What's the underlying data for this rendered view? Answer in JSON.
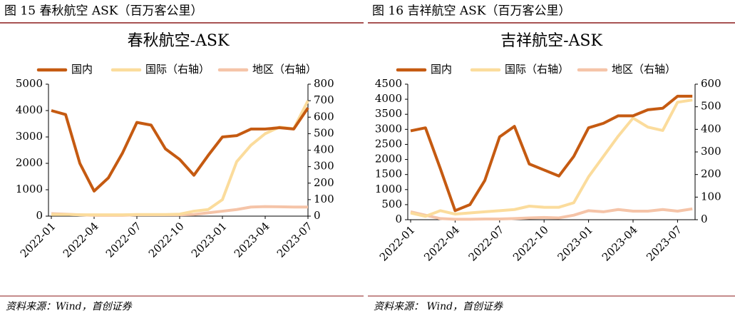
{
  "chart_data": [
    {
      "type": "line",
      "caption": "图 15 春秋航空 ASK（百万客公里）",
      "title": "春秋航空-ASK",
      "source": "资料来源：Wind，首创证券",
      "categories": [
        "2022-01",
        null,
        null,
        "2022-04",
        null,
        null,
        "2022-07",
        null,
        null,
        "2022-10",
        null,
        null,
        "2023-01",
        null,
        null,
        "2023-04",
        null,
        null,
        "2023-07"
      ],
      "series": [
        {
          "name": "国内",
          "color": "#c55a11",
          "values": [
            4000,
            3850,
            2000,
            950,
            1450,
            2400,
            3550,
            3450,
            2550,
            2150,
            1550,
            2300,
            3000,
            3050,
            3300,
            3300,
            3350,
            3300,
            4100
          ]
        },
        {
          "name": "国际（右轴）",
          "color": "#fbdc9c",
          "axis": "y2",
          "values": [
            10,
            10,
            8,
            8,
            8,
            8,
            10,
            10,
            10,
            12,
            30,
            40,
            100,
            330,
            430,
            500,
            540,
            530,
            700
          ]
        },
        {
          "name": "地区（右轴）",
          "color": "#f5c4a8",
          "axis": "y2",
          "values": [
            15,
            12,
            8,
            5,
            5,
            5,
            8,
            8,
            8,
            8,
            10,
            20,
            30,
            40,
            55,
            58,
            57,
            55,
            55
          ]
        }
      ],
      "ylim": [
        0,
        5000
      ],
      "yticks": [
        0,
        1000,
        2000,
        3000,
        4000,
        5000
      ],
      "y2lim": [
        0,
        800
      ],
      "y2ticks": [
        0,
        100,
        200,
        300,
        400,
        500,
        600,
        700,
        800
      ]
    },
    {
      "type": "line",
      "caption": "图 16 吉祥航空 ASK（百万客公里）",
      "title": "吉祥航空-ASK",
      "source": "资料来源： Wind，首创证券",
      "categories": [
        "2022-01",
        null,
        null,
        "2022-04",
        null,
        null,
        "2022-07",
        null,
        null,
        "2022-10",
        null,
        null,
        "2023-01",
        null,
        null,
        "2023-04",
        null,
        null,
        "2023-07",
        null
      ],
      "series": [
        {
          "name": "国内",
          "color": "#c55a11",
          "values": [
            2950,
            3050,
            1700,
            300,
            500,
            1300,
            2750,
            3100,
            1850,
            1650,
            1450,
            2100,
            3050,
            3200,
            3450,
            3450,
            3650,
            3700,
            4100,
            4100
          ]
        },
        {
          "name": "国际（右轴）",
          "color": "#fbdc9c",
          "axis": "y2",
          "values": [
            30,
            15,
            40,
            25,
            30,
            35,
            40,
            45,
            60,
            55,
            55,
            75,
            190,
            280,
            370,
            450,
            410,
            395,
            520,
            530
          ]
        },
        {
          "name": "地区（右轴）",
          "color": "#f5c4a8",
          "axis": "y2",
          "values": [
            35,
            20,
            5,
            2,
            2,
            3,
            3,
            5,
            8,
            10,
            8,
            20,
            40,
            35,
            45,
            38,
            38,
            45,
            38,
            48
          ]
        }
      ],
      "ylim": [
        0,
        4500
      ],
      "yticks": [
        0,
        500,
        1000,
        1500,
        2000,
        2500,
        3000,
        3500,
        4000,
        4500
      ],
      "y2lim": [
        0,
        600
      ],
      "y2ticks": [
        0,
        100,
        200,
        300,
        400,
        500,
        600
      ]
    }
  ]
}
